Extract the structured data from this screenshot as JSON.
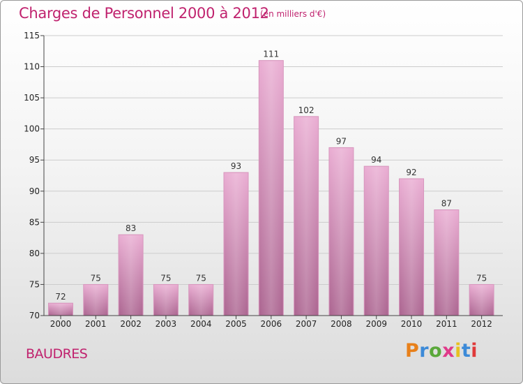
{
  "header": {
    "title": "Charges de Personnel 2000 à 2012",
    "subtitle": "(en milliers d'€)"
  },
  "footer": {
    "place": "BAUDRES",
    "logo": "Proxiti"
  },
  "colors": {
    "accent": "#c0226e",
    "bar_top": "#e8a8cf",
    "bar_bottom": "#b26b96"
  },
  "chart_data": {
    "type": "bar",
    "title": "Charges de Personnel 2000 à 2012",
    "subtitle": "(en milliers d'€)",
    "categories": [
      "2000",
      "2001",
      "2002",
      "2003",
      "2004",
      "2005",
      "2006",
      "2007",
      "2008",
      "2009",
      "2010",
      "2011",
      "2012"
    ],
    "values": [
      72,
      75,
      83,
      75,
      75,
      93,
      111,
      102,
      97,
      94,
      92,
      87,
      75
    ],
    "ylim": [
      70,
      115
    ],
    "yticks": [
      70,
      75,
      80,
      85,
      90,
      95,
      100,
      105,
      110,
      115
    ],
    "grid": true,
    "legend": "none",
    "xlabel": "",
    "ylabel": ""
  }
}
